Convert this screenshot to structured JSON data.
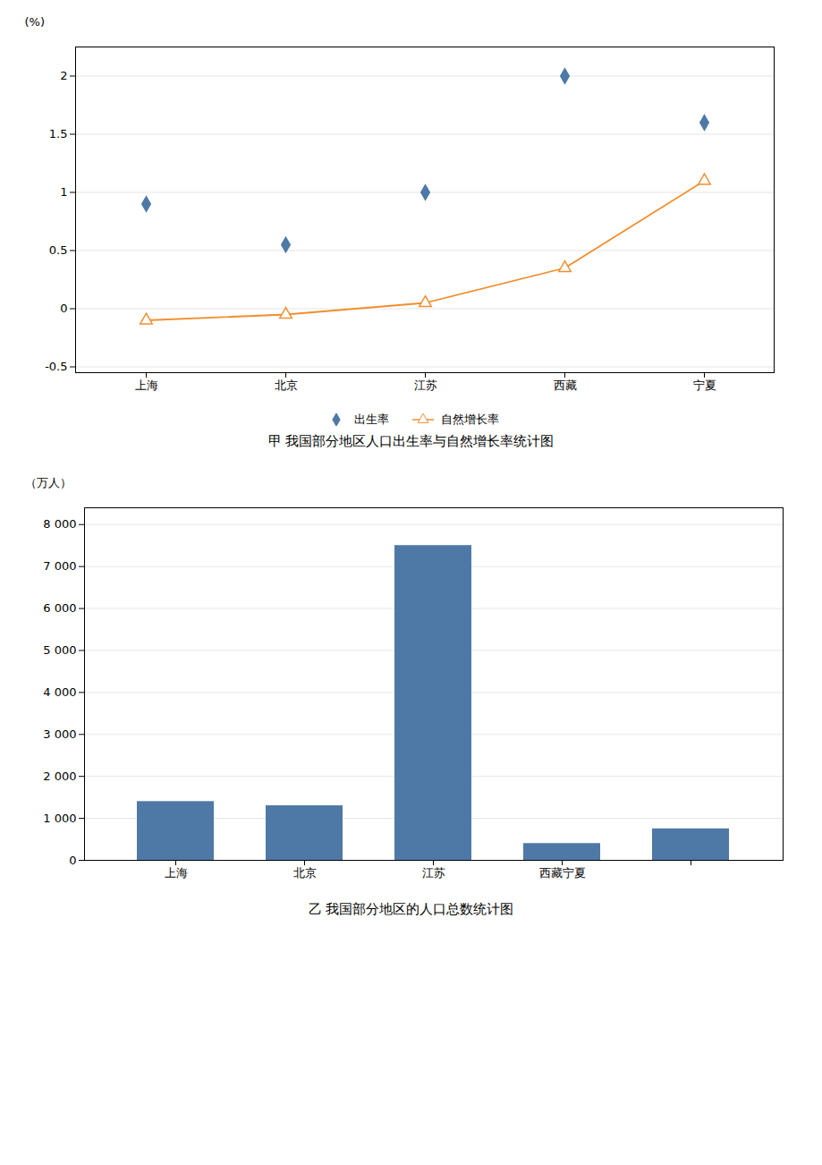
{
  "chart_data": [
    {
      "type": "line",
      "title": "甲  我国部分地区人口出生率与自然增长率统计图",
      "categories": [
        "上海",
        "北京",
        "江苏",
        "西藏",
        "宁夏"
      ],
      "series": [
        {
          "name": "出生率",
          "type": "scatter",
          "marker": "diamond",
          "values": [
            0.9,
            0.55,
            1.0,
            2.0,
            1.6
          ]
        },
        {
          "name": "自然增长率",
          "type": "line",
          "marker": "triangle",
          "values": [
            -0.1,
            -0.05,
            0.05,
            0.35,
            1.1
          ]
        }
      ],
      "y_label": "(%)",
      "ylim": [
        -0.55,
        2.25
      ],
      "yticks": [
        -0.5,
        0,
        0.5,
        1,
        1.5,
        2
      ],
      "grid": true,
      "legend": "bottom"
    },
    {
      "type": "bar",
      "title": "乙  我国部分地区的人口总数统计图",
      "categories": [
        "上海",
        "北京",
        "江苏",
        "西藏宁夏",
        null
      ],
      "values": [
        1400,
        1300,
        7500,
        400,
        750
      ],
      "y_label": "（万人）",
      "ylim": [
        0,
        8400
      ],
      "yticks": [
        0,
        {
          "value": 1000,
          "label": "1 000"
        },
        {
          "value": 2000,
          "label": "2 000"
        },
        {
          "value": 3000,
          "label": "3 000"
        },
        {
          "value": 4000,
          "label": "4 000"
        },
        {
          "value": 5000,
          "label": "5 000"
        },
        {
          "value": 6000,
          "label": "6 000"
        },
        {
          "value": 7000,
          "label": "7 000"
        },
        {
          "value": 8000,
          "label": "8 000"
        }
      ],
      "grid": true
    }
  ]
}
